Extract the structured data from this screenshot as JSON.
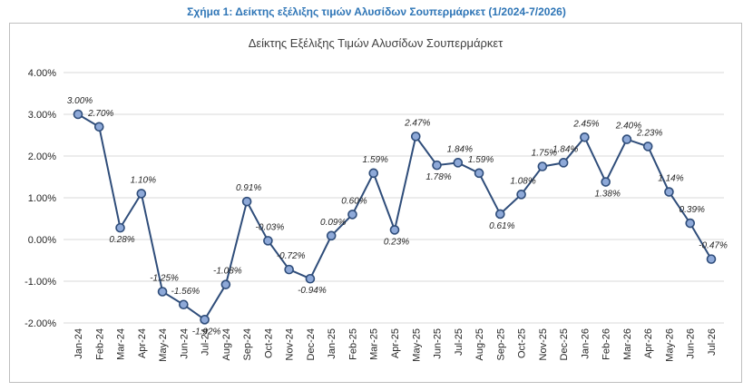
{
  "caption": "Σχήμα 1: Δείκτης εξέλιξης τιμών Αλυσίδων Σουπερμάρκετ (1/2024-7/2026)",
  "chart_data": {
    "type": "line",
    "title": "Δείκτης Εξέλιξης Τιμών Αλυσίδων Σουπερμάρκετ",
    "xlabel": "",
    "ylabel": "",
    "ylim": [
      -2.0,
      4.0
    ],
    "yticks": [
      "-2.00%",
      "-1.00%",
      "0.00%",
      "1.00%",
      "2.00%",
      "3.00%",
      "4.00%"
    ],
    "grid": true,
    "legend": "none",
    "line_color": "#2f4d7a",
    "marker_color": "#8ea9d8",
    "categories": [
      "Jan-24",
      "Feb-24",
      "Mar-24",
      "Apr-24",
      "May-24",
      "Jun-24",
      "Jul-24",
      "Aug-24",
      "Sep-24",
      "Oct-24",
      "Nov-24",
      "Dec-24",
      "Jan-25",
      "Feb-25",
      "Mar-25",
      "Apr-25",
      "May-25",
      "Jun-25",
      "Jul-25",
      "Aug-25",
      "Sep-25",
      "Oct-25",
      "Nov-25",
      "Dec-25",
      "Jan-26",
      "Feb-26",
      "Mar-26",
      "Apr-26",
      "May-26",
      "Jun-26",
      "Jul-26"
    ],
    "values": [
      3.0,
      2.7,
      0.28,
      1.1,
      -1.25,
      -1.56,
      -1.92,
      -1.08,
      0.91,
      -0.03,
      -0.72,
      -0.94,
      0.09,
      0.6,
      1.59,
      0.23,
      2.47,
      1.78,
      1.84,
      1.59,
      0.61,
      1.08,
      1.75,
      1.84,
      2.45,
      1.38,
      2.4,
      2.23,
      1.14,
      0.39,
      -0.47
    ],
    "labels": [
      "3.00%",
      "2.70%",
      "0.28%",
      "1.10%",
      "-1.25%",
      "-1.56%",
      "-1.92%",
      "-1.08%",
      "0.91%",
      "-0.03%",
      "-0.72%",
      "-0.94%",
      "0.09%",
      "0.60%",
      "1.59%",
      "0.23%",
      "2.47%",
      "1.78%",
      "1.84%",
      "1.59%",
      "0.61%",
      "1.08%",
      "1.75%",
      "1.84%",
      "2.45%",
      "1.38%",
      "2.40%",
      "2.23%",
      "1.14%",
      "0.39%",
      "-0.47%"
    ]
  }
}
